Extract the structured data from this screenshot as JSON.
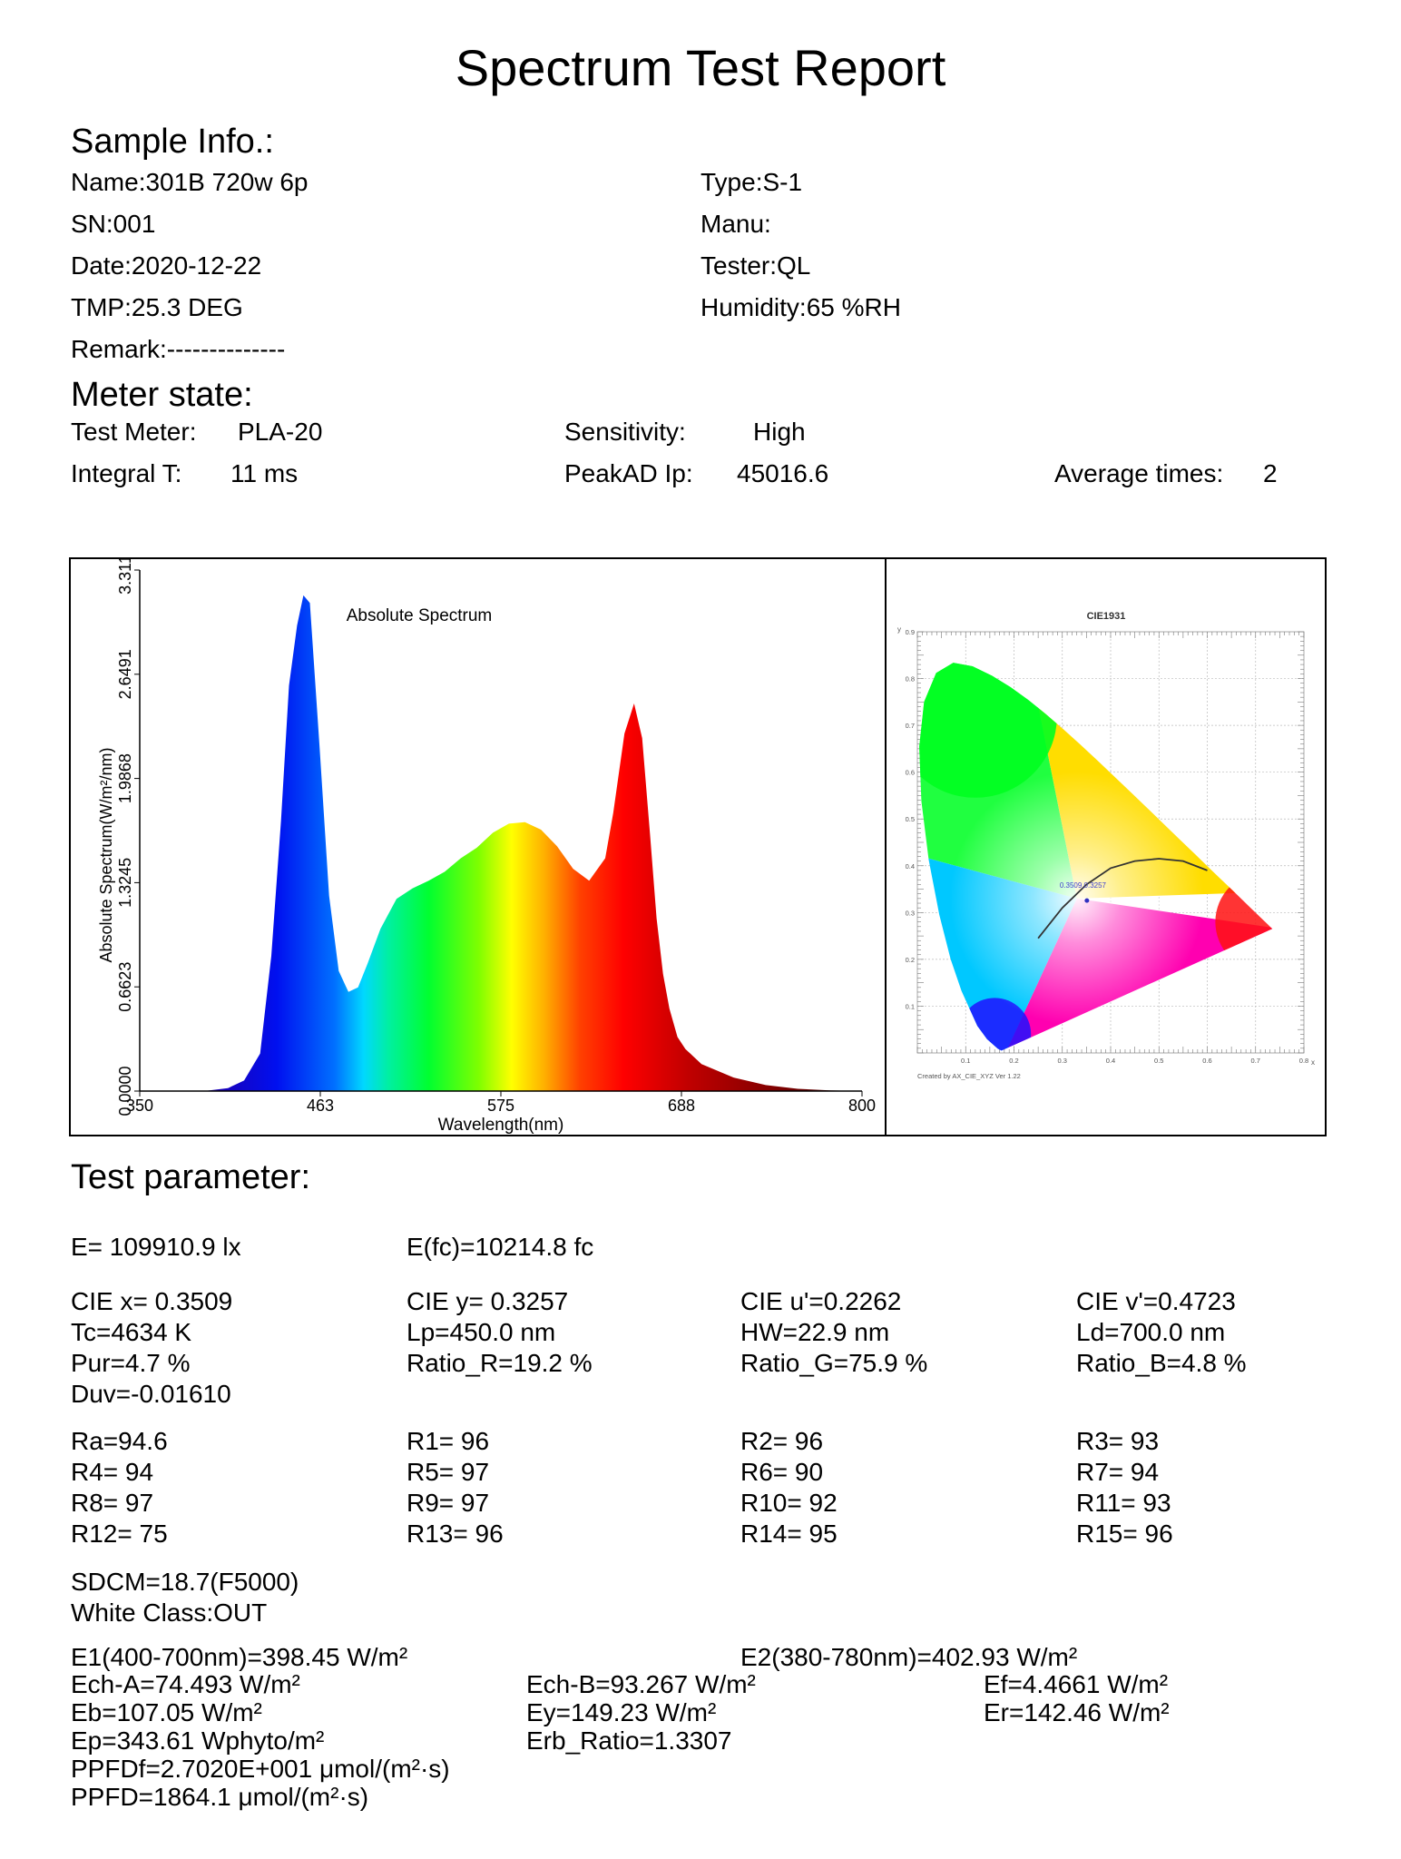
{
  "report": {
    "title": "Spectrum Test Report"
  },
  "sample": {
    "heading": "Sample Info.:",
    "name": "Name:301B 720w 6p",
    "type": "Type:S-1",
    "sn": "SN:001",
    "manu": "Manu:",
    "date": "Date:2020-12-22",
    "tester": "Tester:QL",
    "tmp": "TMP:25.3 DEG",
    "humidity": "Humidity:65 %RH",
    "remark": "Remark:--------------"
  },
  "meter": {
    "heading": "Meter state:",
    "test_meter_label": "Test Meter:",
    "test_meter_value": "PLA-20",
    "sensitivity_label": "Sensitivity:",
    "sensitivity_value": "High",
    "integral_label": "Integral T:",
    "integral_value": "11 ms",
    "peakad_label": "PeakAD Ip:",
    "peakad_value": "45016.6",
    "average_label": "Average times:",
    "average_value": "2"
  },
  "chart_data": [
    {
      "type": "area",
      "title": "Absolute Spectrum",
      "xlabel": "Wavelength(nm)",
      "ylabel": "Absolute Spectrum(W/m²/nm)",
      "xlim": [
        350,
        800
      ],
      "ylim": [
        0,
        3.3114
      ],
      "x_ticks": [
        "350",
        "463",
        "575",
        "688",
        "800"
      ],
      "y_ticks": [
        "0.0000",
        "0.6623",
        "1.3245",
        "1.9868",
        "2.6491",
        "3.3114"
      ],
      "x": [
        350,
        390,
        405,
        415,
        425,
        432,
        438,
        443,
        448,
        452,
        456,
        462,
        468,
        474,
        480,
        486,
        492,
        500,
        510,
        520,
        530,
        540,
        550,
        560,
        570,
        580,
        590,
        600,
        610,
        620,
        630,
        640,
        645,
        652,
        658,
        663,
        668,
        672,
        676,
        680,
        685,
        690,
        700,
        720,
        740,
        760,
        780,
        800
      ],
      "values": [
        0,
        0,
        0.02,
        0.07,
        0.25,
        0.9,
        1.8,
        2.7,
        3.1,
        3.3,
        3.25,
        2.3,
        1.3,
        0.8,
        0.66,
        0.69,
        0.85,
        1.08,
        1.28,
        1.35,
        1.4,
        1.46,
        1.55,
        1.62,
        1.72,
        1.78,
        1.79,
        1.74,
        1.63,
        1.48,
        1.4,
        1.55,
        1.85,
        2.38,
        2.58,
        2.35,
        1.7,
        1.15,
        0.78,
        0.55,
        0.36,
        0.28,
        0.18,
        0.09,
        0.04,
        0.015,
        0.005,
        0
      ]
    },
    {
      "type": "scatter",
      "title": "CIE1931",
      "xlabel": "x",
      "ylabel": "y",
      "xlim": [
        0,
        0.8
      ],
      "ylim": [
        0,
        0.9
      ],
      "x_ticks": [
        "0.1",
        "0.2",
        "0.3",
        "0.4",
        "0.5",
        "0.6",
        "0.7",
        "0.8"
      ],
      "y_ticks": [
        "0.1",
        "0.2",
        "0.3",
        "0.4",
        "0.5",
        "0.6",
        "0.7",
        "0.8",
        "0.9"
      ],
      "points": [
        {
          "label": "0.3509,0.3257",
          "x": 0.3509,
          "y": 0.3257
        }
      ],
      "planckian": [
        [
          0.25,
          0.245
        ],
        [
          0.3,
          0.31
        ],
        [
          0.35,
          0.36
        ],
        [
          0.4,
          0.395
        ],
        [
          0.45,
          0.41
        ],
        [
          0.5,
          0.415
        ],
        [
          0.55,
          0.41
        ],
        [
          0.6,
          0.39
        ]
      ],
      "footer": "Created by AX_CIE_XYZ Ver 1.22"
    }
  ],
  "params": {
    "heading": "Test parameter:",
    "e_lx": "E=  109910.9 lx",
    "e_fc": "E(fc)=10214.8 fc",
    "cie_x": "CIE x= 0.3509",
    "cie_y": "CIE y= 0.3257",
    "cie_u": "CIE u'=0.2262",
    "cie_v": "CIE v'=0.4723",
    "tc": "Tc=4634 K",
    "lp": "Lp=450.0 nm",
    "hw": "HW=22.9 nm",
    "ld": "Ld=700.0 nm",
    "pur": "Pur=4.7 %",
    "ratio_r": "Ratio_R=19.2 %",
    "ratio_g": "Ratio_G=75.9 %",
    "ratio_b": "Ratio_B=4.8 %",
    "duv": "Duv=-0.01610",
    "ra": "Ra=94.6",
    "r1": "R1= 96",
    "r2": "R2= 96",
    "r3": "R3= 93",
    "r4": "R4= 94",
    "r5": "R5= 97",
    "r6": "R6= 90",
    "r7": "R7= 94",
    "r8": "R8= 97",
    "r9": "R9= 97",
    "r10": "R10= 92",
    "r11": "R11= 93",
    "r12": "R12= 75",
    "r13": "R13= 96",
    "r14": "R14= 95",
    "r15": "R15= 96",
    "sdcm": "SDCM=18.7(F5000)",
    "white_class": "White Class:OUT",
    "e1": "E1(400-700nm)=398.45 W/m²",
    "e2": "E2(380-780nm)=402.93 W/m²",
    "ech_a": "Ech-A=74.493 W/m²",
    "ech_b": "Ech-B=93.267 W/m²",
    "ef": "Ef=4.4661 W/m²",
    "eb": "Eb=107.05 W/m²",
    "ey": "Ey=149.23 W/m²",
    "er": "Er=142.46 W/m²",
    "ep": "Ep=343.61 Wphyto/m²",
    "erb": "Erb_Ratio=1.3307",
    "ppfdf": "PPFDf=2.7020E+001 μmol/(m²·s)",
    "ppfd": "PPFD=1864.1 μmol/(m²·s)"
  }
}
